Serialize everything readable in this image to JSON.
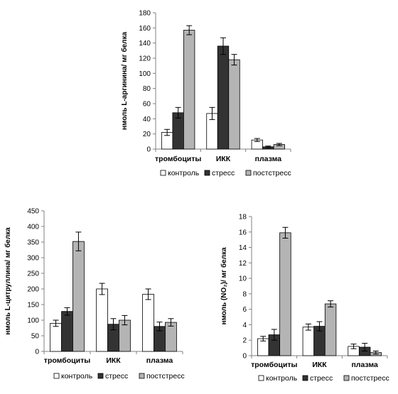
{
  "chart_data": [
    {
      "type": "bar",
      "categories": [
        "тромбоциты",
        "ИКК",
        "плазма"
      ],
      "ylabel": "нмоль L-аргинина/ мг белка",
      "ylim": [
        0,
        180
      ],
      "yticks": [
        0,
        20,
        40,
        60,
        80,
        100,
        120,
        140,
        160,
        180
      ],
      "series": [
        {
          "name": "контроль",
          "values": [
            22,
            47,
            12
          ],
          "errors": [
            4,
            8,
            2
          ]
        },
        {
          "name": "стресс",
          "values": [
            48,
            136,
            3
          ],
          "errors": [
            7,
            11,
            1
          ]
        },
        {
          "name": "постстресс",
          "values": [
            157,
            118,
            6
          ],
          "errors": [
            6,
            7,
            1.5
          ]
        }
      ],
      "legend_position": "bottom"
    },
    {
      "type": "bar",
      "categories": [
        "тромбоциты",
        "ИКК",
        "плазма"
      ],
      "ylabel": "нмоль L-цитруллина/ мг белка",
      "ylim": [
        0,
        450
      ],
      "yticks": [
        0,
        50,
        100,
        150,
        200,
        250,
        300,
        350,
        400,
        450
      ],
      "series": [
        {
          "name": "контроль",
          "values": [
            90,
            200,
            183
          ],
          "errors": [
            10,
            18,
            17
          ]
        },
        {
          "name": "стресс",
          "values": [
            128,
            87,
            80
          ],
          "errors": [
            12,
            18,
            14
          ]
        },
        {
          "name": "постстресс",
          "values": [
            352,
            100,
            93
          ],
          "errors": [
            30,
            15,
            12
          ]
        }
      ],
      "legend_position": "bottom"
    },
    {
      "type": "bar",
      "categories": [
        "тромбоциты",
        "ИКК",
        "плазма"
      ],
      "ylabel": "нмоль (NO₂)/ мг белка",
      "ylim": [
        0,
        18
      ],
      "yticks": [
        0,
        2,
        4,
        6,
        8,
        10,
        12,
        14,
        16,
        18
      ],
      "series": [
        {
          "name": "контроль",
          "values": [
            2.2,
            3.7,
            1.2
          ],
          "errors": [
            0.3,
            0.4,
            0.3
          ]
        },
        {
          "name": "стресс",
          "values": [
            2.7,
            3.8,
            1.1
          ],
          "errors": [
            0.7,
            0.6,
            0.5
          ]
        },
        {
          "name": "постстресс",
          "values": [
            15.9,
            6.7,
            0.4
          ],
          "errors": [
            0.7,
            0.4,
            0.2
          ]
        }
      ],
      "legend_position": "bottom"
    }
  ],
  "colors": {
    "series": [
      "#ffffff",
      "#333333",
      "#b4b4b4"
    ],
    "axis": "#808080",
    "bar_stroke": "#000000"
  }
}
